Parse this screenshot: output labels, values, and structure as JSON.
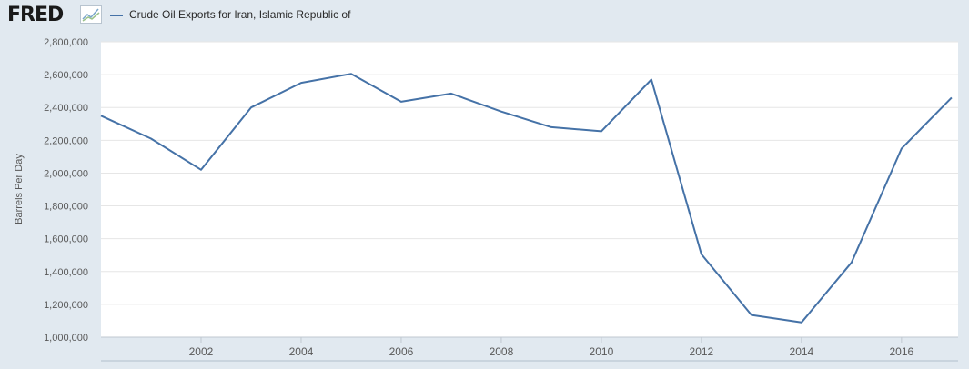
{
  "header": {
    "logo_text": "FRED",
    "logo_icon": "line-chart-icon"
  },
  "colors": {
    "series": "#4572a7",
    "background": "#e1e9f0",
    "plot_bg": "#ffffff",
    "grid": "#e6e6e6"
  },
  "chart_data": {
    "type": "line",
    "title": "",
    "xlabel": "",
    "ylabel": "Barrels Per Day",
    "ylim": [
      1000000,
      2800000
    ],
    "xlim": [
      2000,
      2017.13
    ],
    "grid": true,
    "legend_position": "top-left",
    "x_ticks": [
      2002,
      2004,
      2006,
      2008,
      2010,
      2012,
      2014,
      2016
    ],
    "y_ticks": [
      1000000,
      1200000,
      1400000,
      1600000,
      1800000,
      2000000,
      2200000,
      2400000,
      2600000,
      2800000
    ],
    "y_tick_labels": [
      "1,000,000",
      "1,200,000",
      "1,400,000",
      "1,600,000",
      "1,800,000",
      "2,000,000",
      "2,200,000",
      "2,400,000",
      "2,600,000",
      "2,800,000"
    ],
    "series": [
      {
        "name": "Crude Oil Exports for Iran, Islamic Republic of",
        "x": [
          2000,
          2001,
          2002,
          2003,
          2004,
          2005,
          2006,
          2007,
          2008,
          2009,
          2010,
          2011,
          2012,
          2013,
          2014,
          2015,
          2016,
          2017
        ],
        "values": [
          2350000,
          2210000,
          2020000,
          2400000,
          2550000,
          2605000,
          2435000,
          2485000,
          2375000,
          2280000,
          2255000,
          2570000,
          1505000,
          1135000,
          1090000,
          1455000,
          2150000,
          2460000
        ]
      }
    ]
  }
}
